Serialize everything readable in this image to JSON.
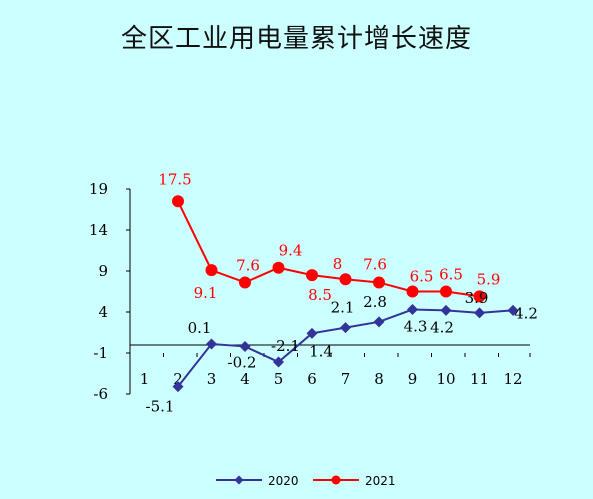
{
  "chart_data": {
    "type": "line",
    "title": "全区工业用电量累计增长速度",
    "categories": [
      "1",
      "2",
      "3",
      "4",
      "5",
      "6",
      "7",
      "8",
      "9",
      "10",
      "11",
      "12"
    ],
    "yticks": [
      "19",
      "14",
      "9",
      "4",
      "-1",
      "-6"
    ],
    "ylim": [
      -6,
      19
    ],
    "grid": false,
    "legend_position": "bottom",
    "colors": {
      "s2020": "#333399",
      "s2021": "#ff0000"
    },
    "series": [
      {
        "name": "2020",
        "x": [
          2,
          3,
          4,
          5,
          6,
          7,
          8,
          9,
          10,
          11,
          12
        ],
        "values": [
          -5.1,
          0.1,
          -0.2,
          -2.1,
          1.4,
          2.1,
          2.8,
          4.3,
          4.2,
          3.9,
          4.2
        ],
        "labels": [
          "-5.1",
          "0.1",
          "-0.2",
          "-2.1",
          "1.4",
          "2.1",
          "2.8",
          "4.3",
          "4.2",
          "3.9",
          "4.2"
        ]
      },
      {
        "name": "2021",
        "x": [
          2,
          3,
          4,
          5,
          6,
          7,
          8,
          9,
          10,
          11
        ],
        "values": [
          17.5,
          9.1,
          7.6,
          9.4,
          8.5,
          8,
          7.6,
          6.5,
          6.5,
          5.9
        ],
        "labels": [
          "17.5",
          "9.1",
          "7.6",
          "9.4",
          "8.5",
          "8",
          "7.6",
          "6.5",
          "6.5",
          "5.9"
        ]
      }
    ]
  }
}
